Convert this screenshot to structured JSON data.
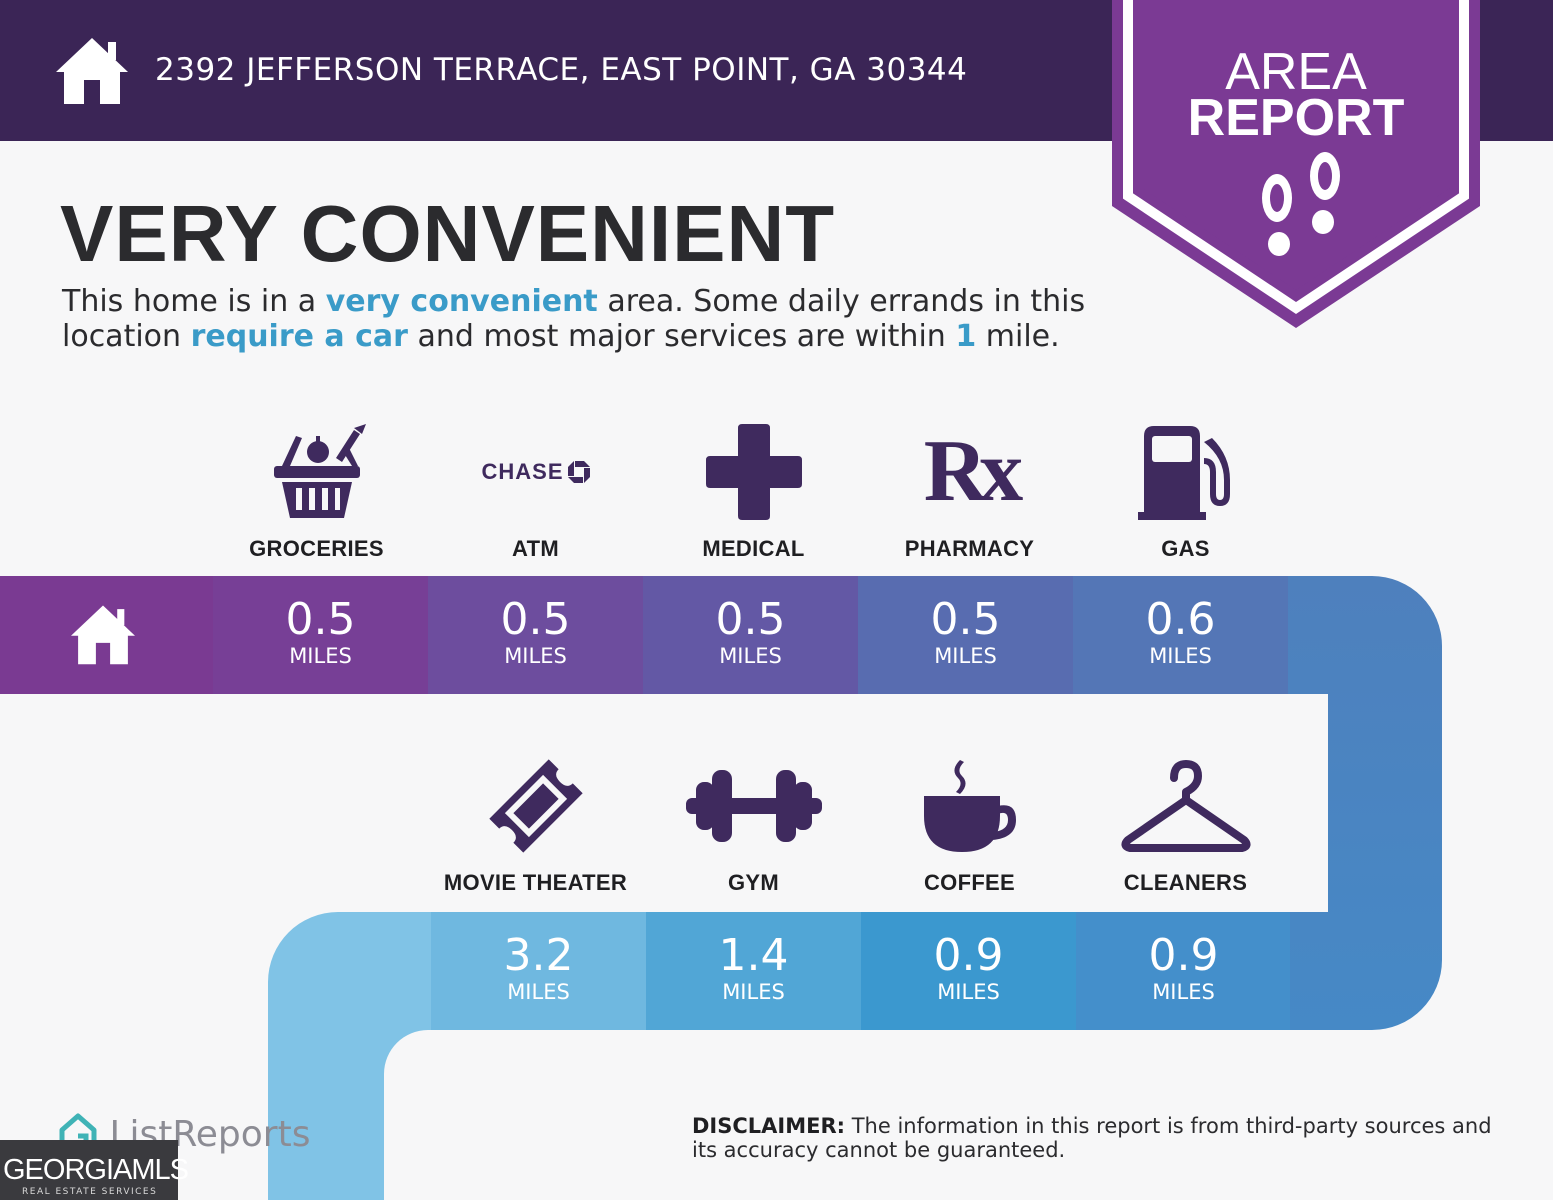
{
  "header": {
    "address": "2392 JEFFERSON TERRACE, EAST POINT, GA 30344"
  },
  "badge": {
    "line1": "AREA",
    "line2": "REPORT"
  },
  "rating": {
    "title": "VERY CONVENIENT"
  },
  "description": {
    "p1": "This home is in a ",
    "h1": "very convenient",
    "p2": " area. Some daily errands in this location ",
    "h2": "require a car",
    "p3": " and most major services are within ",
    "h3": "1",
    "p4": " mile."
  },
  "amenities": [
    {
      "label": "GROCERIES",
      "icon": "grocery-basket-icon",
      "distance": "0.5",
      "unit": "MILES"
    },
    {
      "label": "ATM",
      "icon": "chase-logo-icon",
      "icon_text": "CHASE",
      "distance": "0.5",
      "unit": "MILES"
    },
    {
      "label": "MEDICAL",
      "icon": "medical-cross-icon",
      "distance": "0.5",
      "unit": "MILES"
    },
    {
      "label": "PHARMACY",
      "icon": "rx-icon",
      "icon_text": "Rx",
      "distance": "0.5",
      "unit": "MILES"
    },
    {
      "label": "GAS",
      "icon": "gas-pump-icon",
      "distance": "0.6",
      "unit": "MILES"
    },
    {
      "label": "MOVIE THEATER",
      "icon": "ticket-icon",
      "distance": "3.2",
      "unit": "MILES"
    },
    {
      "label": "GYM",
      "icon": "dumbbell-icon",
      "distance": "1.4",
      "unit": "MILES"
    },
    {
      "label": "COFFEE",
      "icon": "coffee-cup-icon",
      "distance": "0.9",
      "unit": "MILES"
    },
    {
      "label": "CLEANERS",
      "icon": "hanger-icon",
      "distance": "0.9",
      "unit": "MILES"
    }
  ],
  "colors": {
    "header_bg": "#3b2556",
    "badge": "#7b3a94",
    "icon": "#3f2a5e",
    "highlight": "#3a9bc8",
    "row1": [
      "#7a3a92",
      "#773f96",
      "#6d4d9e",
      "#6358a5",
      "#586cb0",
      "#4f7ab8"
    ],
    "row2": [
      "#80c3e6",
      "#6fb8e0",
      "#51a6d6",
      "#3b98cf",
      "#448fcb",
      "#4688c4"
    ]
  },
  "footer": {
    "logo": "ListReports",
    "watermark": "GEORGIAMLS",
    "watermark_sub": "REAL ESTATE SERVICES",
    "disclaimer_label": "DISCLAIMER:",
    "disclaimer_text": " The information in this report is from third-party sources and its accuracy cannot be guaranteed."
  }
}
